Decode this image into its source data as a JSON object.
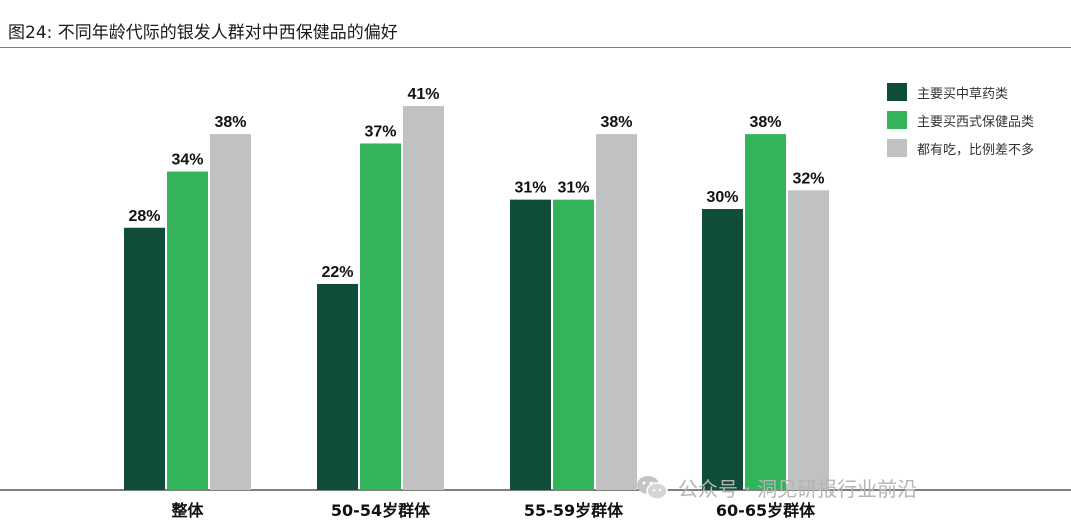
{
  "title": "图24: 不同年龄代际的银发人群对中西保健品的偏好",
  "chart_data": {
    "type": "bar",
    "categories": [
      "整体",
      "50-54岁群体",
      "55-59岁群体",
      "60-65岁群体"
    ],
    "series": [
      {
        "name": "主要买中草药类",
        "color": "#0f4d38",
        "values": [
          28,
          22,
          31,
          30
        ],
        "labels": [
          "28%",
          "22%",
          "31%",
          "30%"
        ]
      },
      {
        "name": "主要买西式保健品类",
        "color": "#33b35a",
        "values": [
          34,
          37,
          31,
          38
        ],
        "labels": [
          "34%",
          "37%",
          "31%",
          "38%"
        ]
      },
      {
        "name": "都有吃，比例差不多",
        "color": "#c0c1c3",
        "values": [
          38,
          41,
          38,
          32
        ],
        "labels": [
          "38%",
          "41%",
          "38%",
          "32%"
        ]
      }
    ],
    "ylim": [
      0,
      41
    ],
    "grid": false,
    "legend_position": "top-right",
    "xlabel": "",
    "ylabel": ""
  },
  "watermark": {
    "text": "公众号 · 洞见研报行业前沿",
    "icon": "wechat-icon"
  }
}
